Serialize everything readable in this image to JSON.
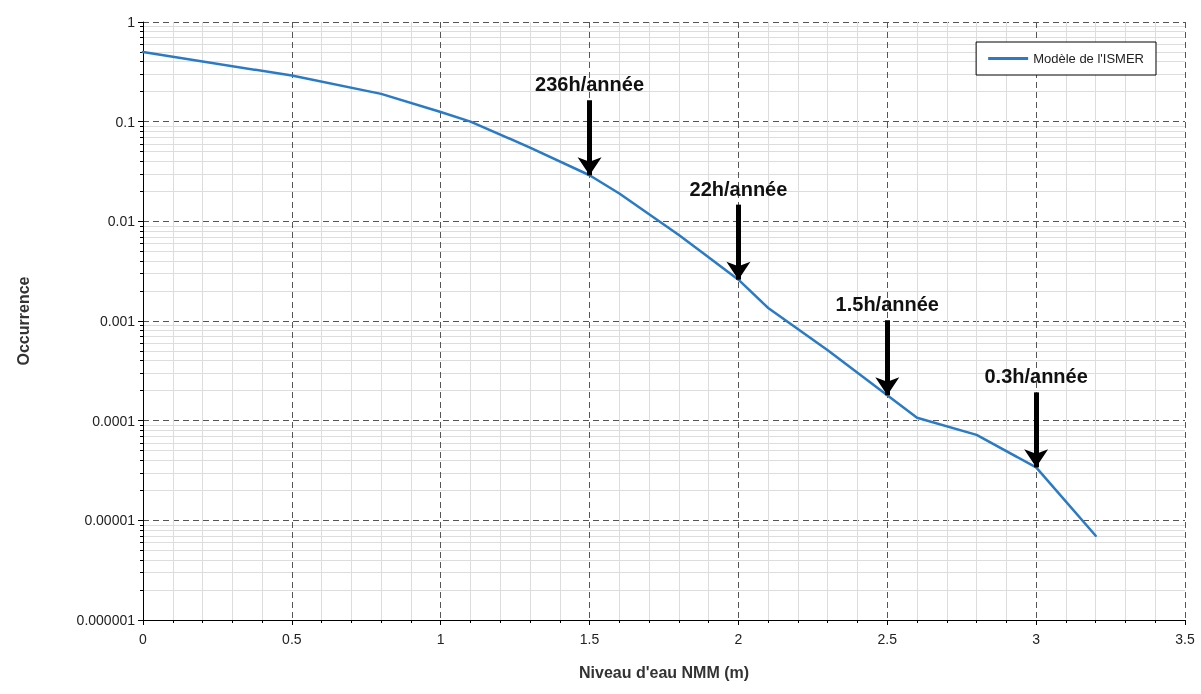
{
  "chart_data": {
    "type": "line",
    "xlabel": "Niveau d'eau NMM (m)",
    "ylabel": "Occurrence",
    "log": "y",
    "grid": true,
    "legend": "top right",
    "marker": "none",
    "line_style": "solid",
    "xlim": [
      0,
      3.5
    ],
    "xticks": [
      0,
      0.5,
      1,
      1.5,
      2,
      2.5,
      3,
      3.5
    ],
    "ylim": [
      1e-06,
      1
    ],
    "yticks": [
      {
        "value": 1e-06,
        "label": "0.000001"
      },
      {
        "value": 1e-05,
        "label": "0.00001"
      },
      0.0001,
      0.001,
      0.01,
      0.1,
      1
    ],
    "x": [
      0,
      0.5,
      0.8,
      1,
      1.1,
      1.3,
      1.5,
      1.6,
      1.8,
      2,
      2.1,
      2.3,
      2.5,
      2.6,
      2.8,
      3,
      3.2
    ],
    "series": [
      {
        "name": "Modèle de l'ISMER",
        "color": "#2a7bc4",
        "values": [
          0.5,
          0.29,
          0.19,
          0.125,
          0.1,
          0.055,
          0.029,
          0.019,
          0.0073,
          0.0026,
          0.00135,
          0.00051,
          0.00018,
          0.000107,
          7.2e-05,
          3.4e-05,
          7e-06
        ]
      }
    ],
    "annotations": [
      {
        "text": "236h/année",
        "x": 1.5,
        "y": 0.029
      },
      {
        "text": "22h/année",
        "x": 2,
        "y": 0.0026
      },
      {
        "text": "1.5h/année",
        "x": 2.5,
        "y": 0.00018
      },
      {
        "text": "0.3h/année",
        "x": 3,
        "y": 3.4e-05
      }
    ]
  }
}
